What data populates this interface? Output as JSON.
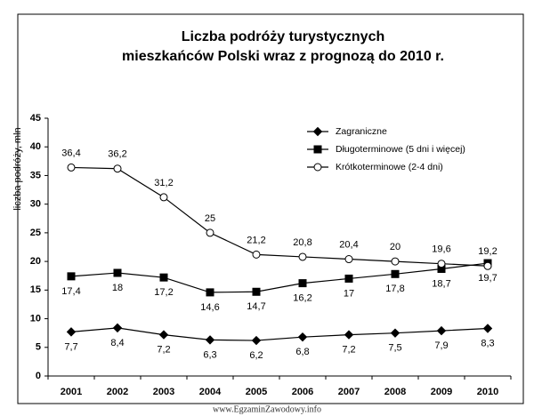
{
  "chart_data": {
    "type": "line",
    "title": [
      "Liczba podróży turystycznych",
      "mieszkańców Polski wraz z prognozą do 2010 r."
    ],
    "y_label": "liczba podróży, mln",
    "watermark": "www.EgzaminZawodowy.info",
    "categories": [
      "2001",
      "2002",
      "2003",
      "2004",
      "2005",
      "2006",
      "2007",
      "2008",
      "2009",
      "2010"
    ],
    "ylim": [
      0,
      45
    ],
    "yticks": [
      0,
      5,
      10,
      15,
      20,
      25,
      30,
      35,
      40,
      45
    ],
    "legend": "top-right",
    "series": [
      {
        "name": "Zagraniczne",
        "color": "#000000",
        "marker": "diamond",
        "values": [
          7.7,
          8.4,
          7.2,
          6.3,
          6.2,
          6.8,
          7.2,
          7.5,
          7.9,
          8.3
        ],
        "value_labels": [
          "7,7",
          "8,4",
          "7,2",
          "6,3",
          "6,2",
          "6,8",
          "7,2",
          "7,5",
          "7,9",
          "8,3"
        ]
      },
      {
        "name": "Długoterminowe (5 dni i więcej)",
        "color": "#000000",
        "marker": "square",
        "values": [
          17.4,
          18,
          17.2,
          14.6,
          14.7,
          16.2,
          17,
          17.8,
          18.7,
          19.7
        ],
        "value_labels": [
          "17,4",
          "18",
          "17,2",
          "14,6",
          "14,7",
          "16,2",
          "17",
          "17,8",
          "18,7",
          "19,7"
        ]
      },
      {
        "name": "Krótkoterminowe (2-4 dni)",
        "color": "#000000",
        "marker": "circle",
        "values": [
          36.4,
          36.2,
          31.2,
          25,
          21.2,
          20.8,
          20.4,
          20,
          19.6,
          19.2
        ],
        "value_labels": [
          "36,4",
          "36,2",
          "31,2",
          "25",
          "21,2",
          "20,8",
          "20,4",
          "20",
          "19,6",
          "19,2"
        ]
      }
    ]
  }
}
